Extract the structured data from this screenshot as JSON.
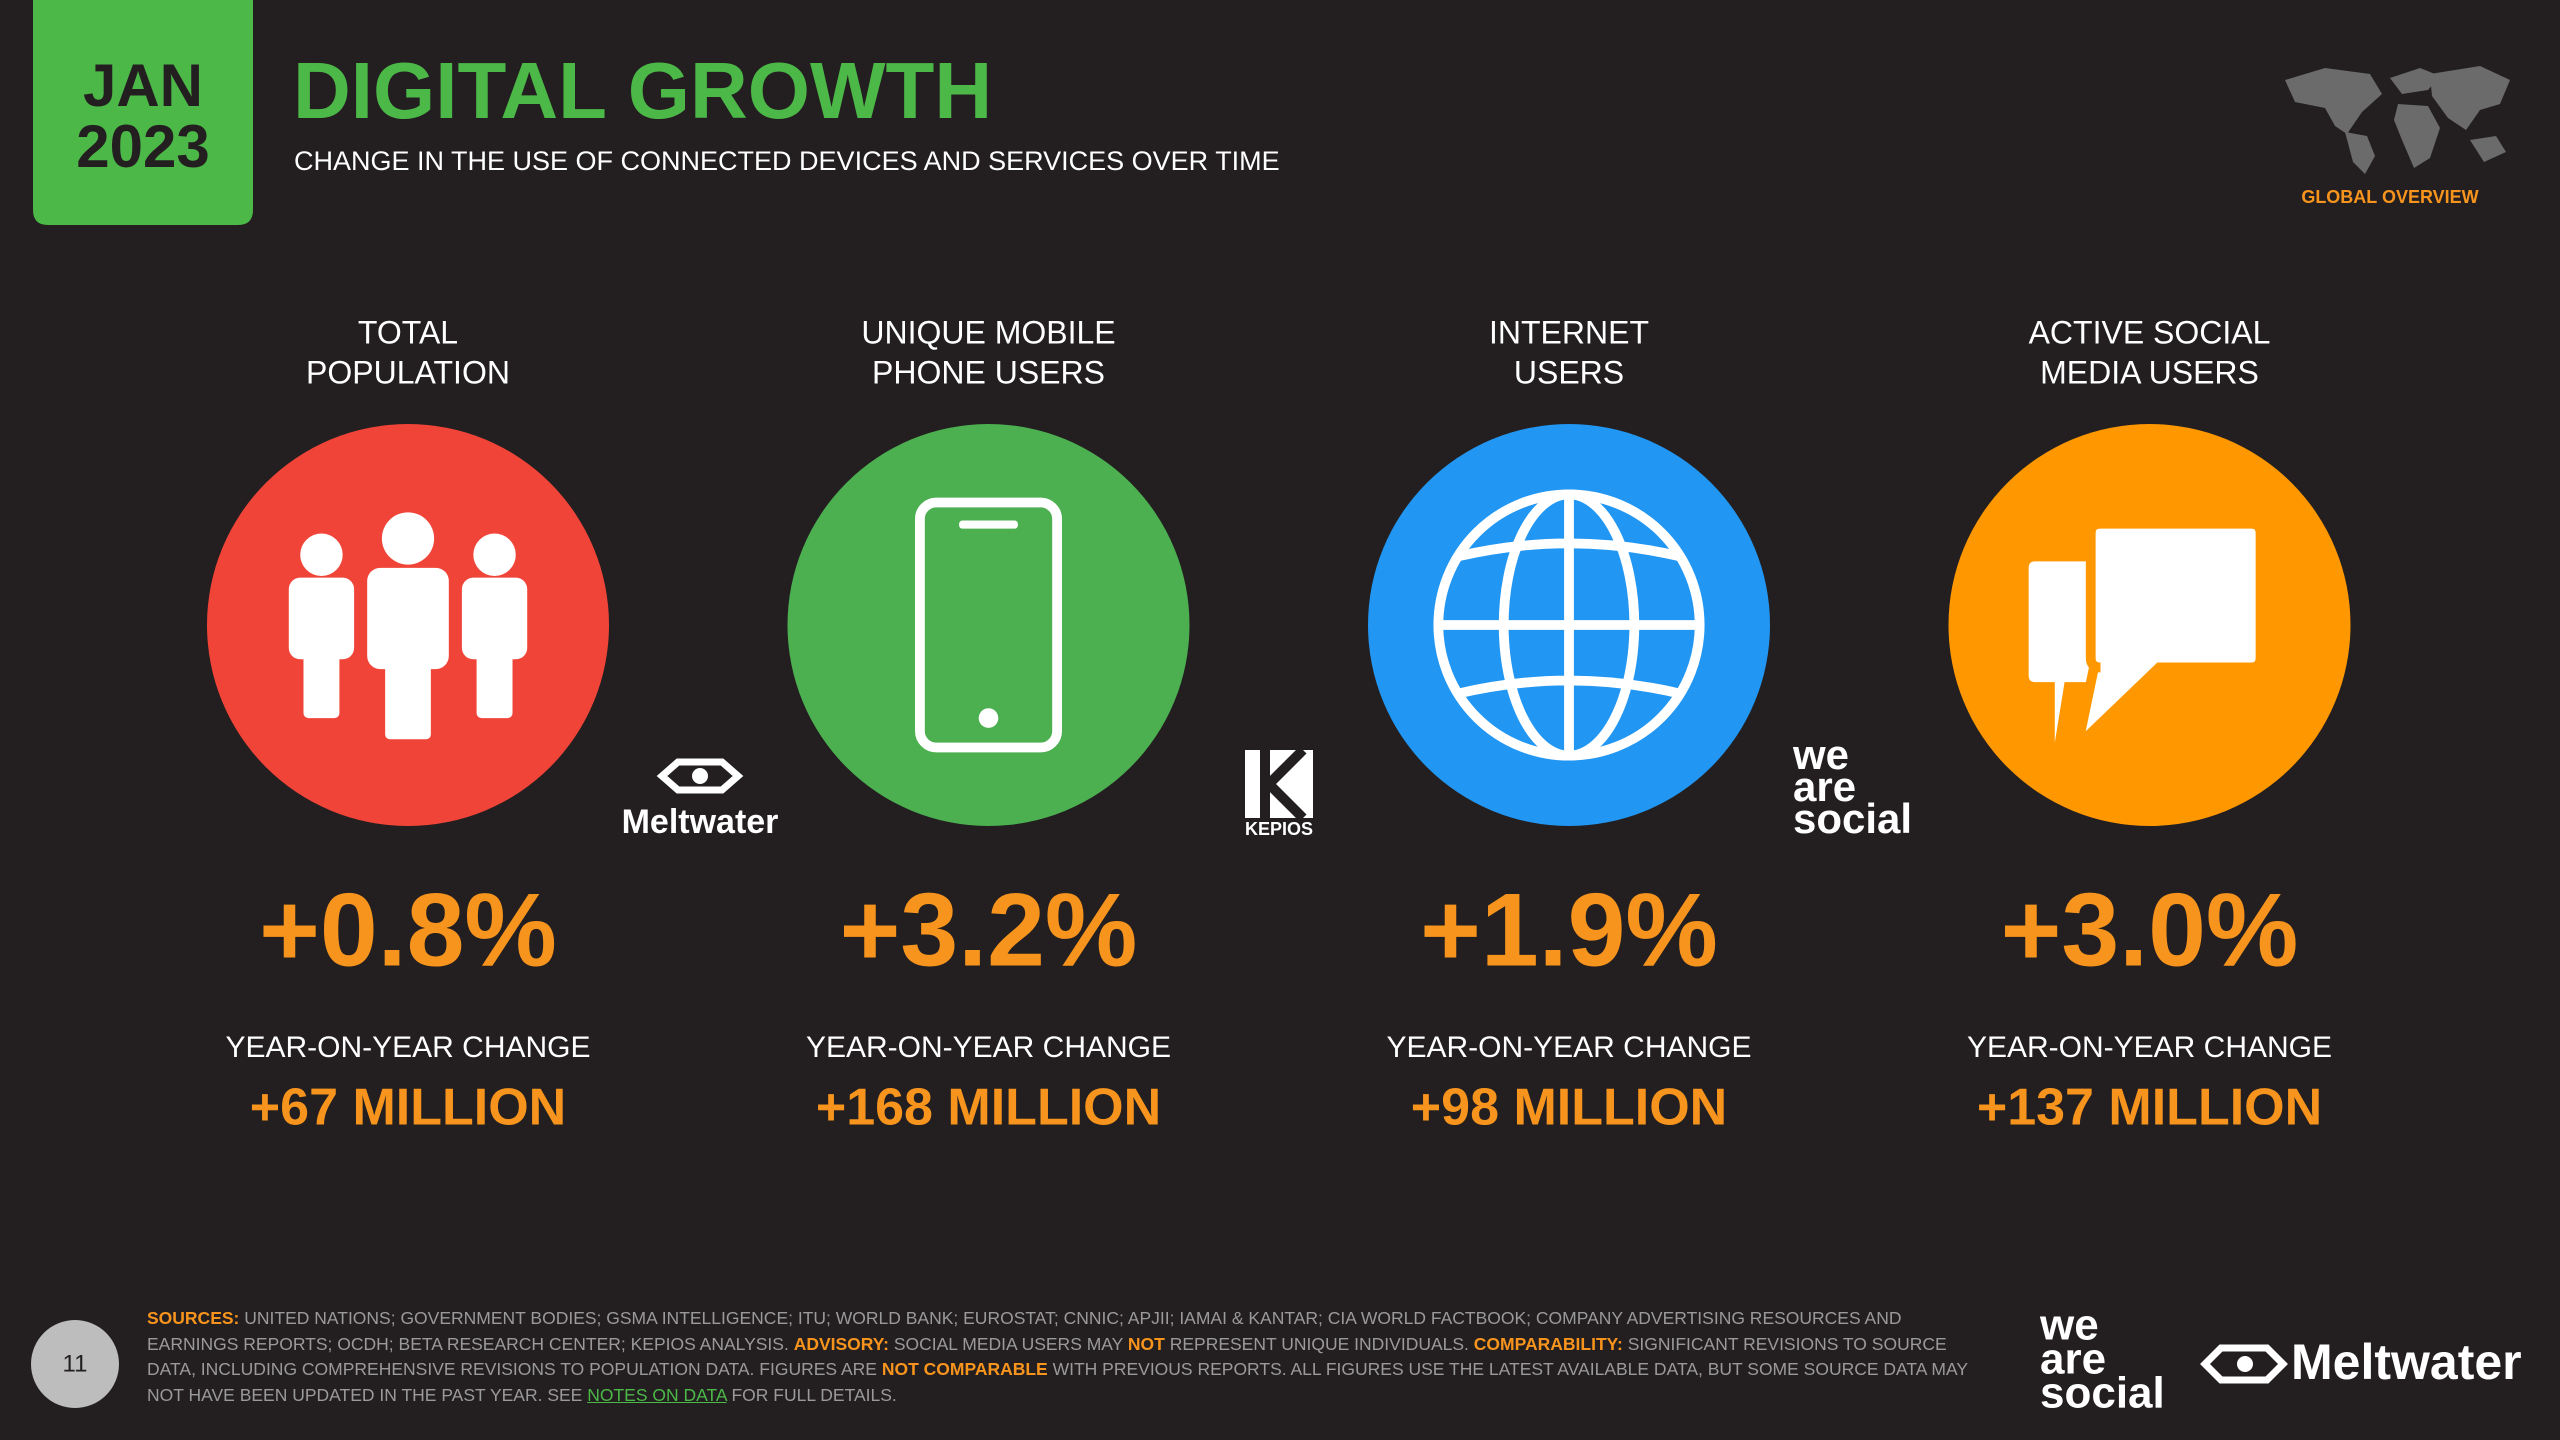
{
  "header": {
    "badge_month": "JAN",
    "badge_year": "2023",
    "title": "DIGITAL GROWTH",
    "subtitle": "CHANGE IN THE USE OF CONNECTED DEVICES AND SERVICES OVER TIME",
    "region": "GLOBAL OVERVIEW"
  },
  "metrics": [
    {
      "label": [
        "TOTAL",
        "POPULATION"
      ],
      "color": "#f04438",
      "change": "+0.8%",
      "change_label": "YEAR-ON-YEAR CHANGE",
      "absolute": "+67 MILLION"
    },
    {
      "label": [
        "UNIQUE MOBILE",
        "PHONE USERS"
      ],
      "color": "#4caf50",
      "change": "+3.2%",
      "change_label": "YEAR-ON-YEAR CHANGE",
      "absolute": "+168 MILLION"
    },
    {
      "label": [
        "INTERNET",
        "USERS"
      ],
      "color": "#2196f3",
      "change": "+1.9%",
      "change_label": "YEAR-ON-YEAR CHANGE",
      "absolute": "+98 MILLION"
    },
    {
      "label": [
        "ACTIVE SOCIAL",
        "MEDIA USERS"
      ],
      "color": "#ff9800",
      "change": "+3.0%",
      "change_label": "YEAR-ON-YEAR CHANGE",
      "absolute": "+137 MILLION"
    }
  ],
  "logos": {
    "meltwater": "Meltwater",
    "kepios": "KEPIOS",
    "we_are_social": [
      "we",
      "are",
      "social"
    ]
  },
  "footer": {
    "page": "11",
    "parts": [
      {
        "text": "SOURCES:",
        "color": "#f7941d"
      },
      {
        "text": " UNITED NATIONS; GOVERNMENT BODIES; GSMA INTELLIGENCE; ITU; WORLD BANK; EUROSTAT; CNNIC; APJII; IAMAI & KANTAR; CIA WORLD FACTBOOK; COMPANY ADVERTISING RESOURCES AND EARNINGS REPORTS; OCDH; BETA RESEARCH CENTER; KEPIOS ANALYSIS. "
      },
      {
        "text": "ADVISORY:",
        "color": "#f7941d"
      },
      {
        "text": " SOCIAL MEDIA USERS MAY "
      },
      {
        "text": "NOT",
        "color": "#f7941d"
      },
      {
        "text": " REPRESENT UNIQUE INDIVIDUALS. "
      },
      {
        "text": "COMPARABILITY:",
        "color": "#f7941d"
      },
      {
        "text": " SIGNIFICANT REVISIONS TO SOURCE DATA, INCLUDING COMPREHENSIVE REVISIONS TO POPULATION DATA. FIGURES ARE "
      },
      {
        "text": "NOT COMPARABLE",
        "color": "#f7941d"
      },
      {
        "text": " WITH PREVIOUS REPORTS. ALL FIGURES USE THE LATEST AVAILABLE DATA, BUT SOME SOURCE DATA MAY NOT HAVE BEEN UPDATED IN THE PAST YEAR. SEE "
      },
      {
        "text": "NOTES ON DATA",
        "color": "#4cb848",
        "underline": true
      },
      {
        "text": " FOR FULL DETAILS."
      }
    ]
  }
}
